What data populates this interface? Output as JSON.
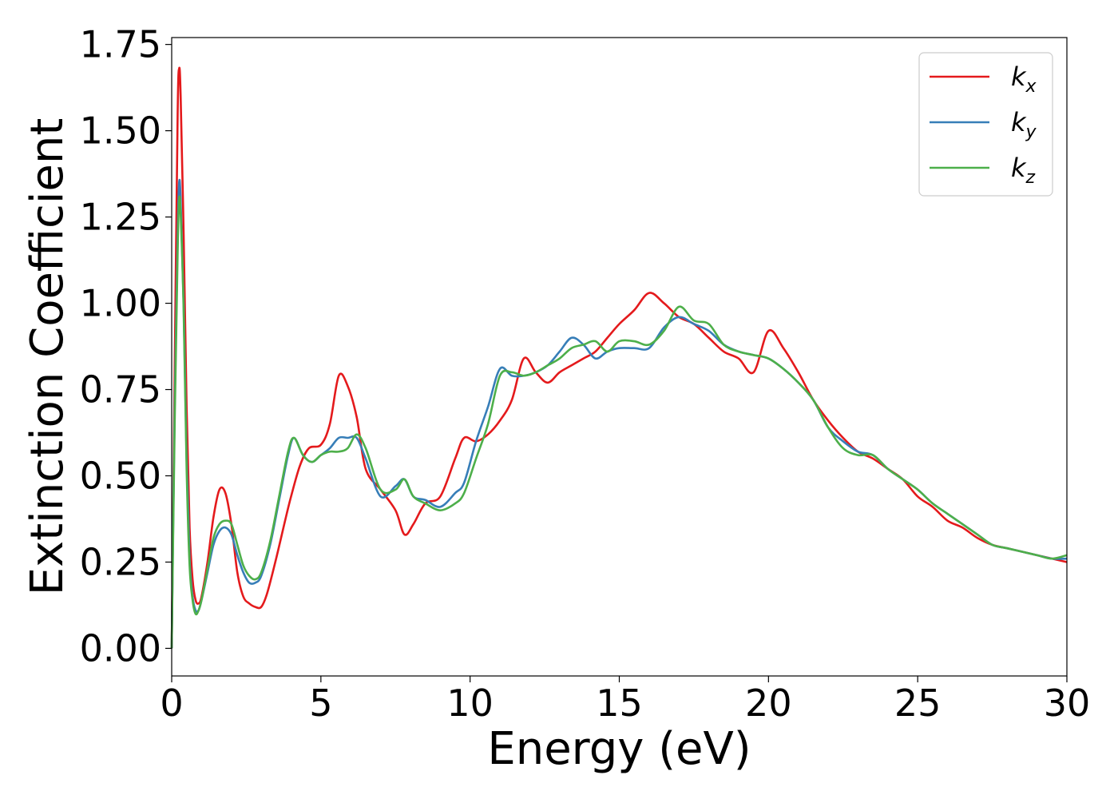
{
  "chart_data": {
    "type": "line",
    "xlabel": "Energy (eV)",
    "ylabel": "Extinction Coefficient",
    "xlim": [
      0,
      30
    ],
    "ylim": [
      -0.08,
      1.77
    ],
    "xticks": [
      0,
      5,
      10,
      15,
      20,
      25,
      30
    ],
    "xtick_labels": [
      "0",
      "5",
      "10",
      "15",
      "20",
      "25",
      "30"
    ],
    "yticks": [
      0.0,
      0.25,
      0.5,
      0.75,
      1.0,
      1.25,
      1.5,
      1.75
    ],
    "ytick_labels": [
      "0.00",
      "0.25",
      "0.50",
      "0.75",
      "1.00",
      "1.25",
      "1.50",
      "1.75"
    ],
    "grid": false,
    "legend_position": "top-right",
    "series": [
      {
        "name": "k_x",
        "label_base": "k",
        "label_sub": "x",
        "color": "#e41a1c",
        "x": [
          0.0,
          0.1,
          0.2,
          0.25,
          0.3,
          0.4,
          0.5,
          0.6,
          0.7,
          0.8,
          0.9,
          1.0,
          1.2,
          1.4,
          1.6,
          1.8,
          2.0,
          2.2,
          2.4,
          2.6,
          2.8,
          3.0,
          3.2,
          3.5,
          3.8,
          4.0,
          4.3,
          4.6,
          5.0,
          5.3,
          5.6,
          5.9,
          6.2,
          6.5,
          7.0,
          7.5,
          7.8,
          8.1,
          8.5,
          9.0,
          9.5,
          9.8,
          10.2,
          10.6,
          11.0,
          11.4,
          11.8,
          12.2,
          12.6,
          13.0,
          13.4,
          13.8,
          14.2,
          14.6,
          15.0,
          15.5,
          16.0,
          16.5,
          17.0,
          17.5,
          18.0,
          18.5,
          19.0,
          19.5,
          20.0,
          20.5,
          21.0,
          21.5,
          22.0,
          22.5,
          23.0,
          23.5,
          24.0,
          24.5,
          25.0,
          25.5,
          26.0,
          26.5,
          27.0,
          27.5,
          28.0,
          28.5,
          29.0,
          29.5,
          30.0
        ],
        "y": [
          0.0,
          0.8,
          1.55,
          1.68,
          1.6,
          1.2,
          0.7,
          0.35,
          0.2,
          0.14,
          0.13,
          0.15,
          0.25,
          0.38,
          0.46,
          0.45,
          0.36,
          0.22,
          0.15,
          0.13,
          0.12,
          0.12,
          0.16,
          0.26,
          0.37,
          0.44,
          0.53,
          0.58,
          0.59,
          0.65,
          0.79,
          0.76,
          0.67,
          0.52,
          0.46,
          0.4,
          0.33,
          0.36,
          0.42,
          0.44,
          0.55,
          0.61,
          0.6,
          0.62,
          0.66,
          0.72,
          0.84,
          0.8,
          0.77,
          0.8,
          0.82,
          0.84,
          0.86,
          0.9,
          0.94,
          0.98,
          1.03,
          1.0,
          0.96,
          0.94,
          0.9,
          0.86,
          0.84,
          0.8,
          0.92,
          0.87,
          0.8,
          0.72,
          0.66,
          0.61,
          0.57,
          0.55,
          0.52,
          0.49,
          0.44,
          0.41,
          0.37,
          0.35,
          0.32,
          0.3,
          0.29,
          0.28,
          0.27,
          0.26,
          0.25
        ]
      },
      {
        "name": "k_y",
        "label_base": "k",
        "label_sub": "y",
        "color": "#377eb8",
        "x": [
          0.0,
          0.1,
          0.2,
          0.25,
          0.3,
          0.4,
          0.5,
          0.6,
          0.7,
          0.8,
          0.9,
          1.0,
          1.2,
          1.4,
          1.6,
          1.8,
          2.0,
          2.2,
          2.4,
          2.6,
          2.8,
          3.0,
          3.3,
          3.6,
          3.9,
          4.1,
          4.4,
          4.7,
          5.0,
          5.3,
          5.6,
          5.9,
          6.2,
          6.5,
          7.0,
          7.5,
          7.8,
          8.1,
          8.5,
          9.0,
          9.5,
          9.8,
          10.2,
          10.6,
          11.0,
          11.4,
          11.8,
          12.2,
          12.6,
          13.0,
          13.4,
          13.8,
          14.2,
          14.6,
          15.0,
          15.5,
          16.0,
          16.5,
          17.0,
          17.5,
          18.0,
          18.5,
          19.0,
          19.5,
          20.0,
          20.5,
          21.0,
          21.5,
          22.0,
          22.5,
          23.0,
          23.5,
          24.0,
          24.5,
          25.0,
          25.5,
          26.0,
          26.5,
          27.0,
          27.5,
          28.0,
          28.5,
          29.0,
          29.5,
          30.0
        ],
        "y": [
          0.0,
          0.7,
          1.2,
          1.35,
          1.3,
          1.0,
          0.55,
          0.26,
          0.15,
          0.11,
          0.11,
          0.14,
          0.22,
          0.3,
          0.34,
          0.35,
          0.33,
          0.27,
          0.22,
          0.19,
          0.19,
          0.21,
          0.3,
          0.43,
          0.56,
          0.61,
          0.56,
          0.54,
          0.56,
          0.58,
          0.61,
          0.61,
          0.61,
          0.55,
          0.44,
          0.47,
          0.49,
          0.44,
          0.43,
          0.41,
          0.45,
          0.48,
          0.6,
          0.7,
          0.81,
          0.79,
          0.79,
          0.8,
          0.82,
          0.86,
          0.9,
          0.88,
          0.84,
          0.86,
          0.87,
          0.87,
          0.87,
          0.93,
          0.96,
          0.94,
          0.92,
          0.88,
          0.86,
          0.85,
          0.84,
          0.81,
          0.77,
          0.72,
          0.64,
          0.6,
          0.57,
          0.56,
          0.52,
          0.49,
          0.46,
          0.42,
          0.39,
          0.36,
          0.33,
          0.3,
          0.29,
          0.28,
          0.27,
          0.26,
          0.26
        ]
      },
      {
        "name": "k_z",
        "label_base": "k",
        "label_sub": "z",
        "color": "#4daf4a",
        "x": [
          0.0,
          0.1,
          0.2,
          0.25,
          0.3,
          0.4,
          0.5,
          0.6,
          0.7,
          0.8,
          0.9,
          1.0,
          1.2,
          1.4,
          1.6,
          1.8,
          2.0,
          2.2,
          2.4,
          2.6,
          2.8,
          3.0,
          3.3,
          3.6,
          3.9,
          4.1,
          4.4,
          4.7,
          5.0,
          5.3,
          5.6,
          5.9,
          6.2,
          6.5,
          7.0,
          7.5,
          7.8,
          8.1,
          8.5,
          9.0,
          9.5,
          9.8,
          10.2,
          10.6,
          11.0,
          11.4,
          11.8,
          12.2,
          12.6,
          13.0,
          13.4,
          13.8,
          14.2,
          14.6,
          15.0,
          15.5,
          16.0,
          16.5,
          17.0,
          17.5,
          18.0,
          18.5,
          19.0,
          19.5,
          20.0,
          20.5,
          21.0,
          21.5,
          22.0,
          22.5,
          23.0,
          23.5,
          24.0,
          24.5,
          25.0,
          25.5,
          26.0,
          26.5,
          27.0,
          27.5,
          28.0,
          28.5,
          29.0,
          29.5,
          30.0
        ],
        "y": [
          0.0,
          0.65,
          1.15,
          1.3,
          1.26,
          0.98,
          0.52,
          0.24,
          0.14,
          0.1,
          0.11,
          0.14,
          0.23,
          0.32,
          0.36,
          0.37,
          0.36,
          0.3,
          0.24,
          0.21,
          0.2,
          0.22,
          0.31,
          0.44,
          0.57,
          0.61,
          0.56,
          0.54,
          0.56,
          0.57,
          0.57,
          0.58,
          0.62,
          0.58,
          0.46,
          0.46,
          0.49,
          0.44,
          0.42,
          0.4,
          0.42,
          0.45,
          0.55,
          0.65,
          0.79,
          0.8,
          0.79,
          0.8,
          0.82,
          0.84,
          0.87,
          0.88,
          0.89,
          0.86,
          0.89,
          0.89,
          0.88,
          0.92,
          0.99,
          0.95,
          0.94,
          0.88,
          0.86,
          0.85,
          0.84,
          0.81,
          0.77,
          0.72,
          0.64,
          0.58,
          0.56,
          0.56,
          0.52,
          0.49,
          0.46,
          0.42,
          0.39,
          0.36,
          0.33,
          0.3,
          0.29,
          0.28,
          0.27,
          0.26,
          0.27
        ]
      }
    ]
  }
}
